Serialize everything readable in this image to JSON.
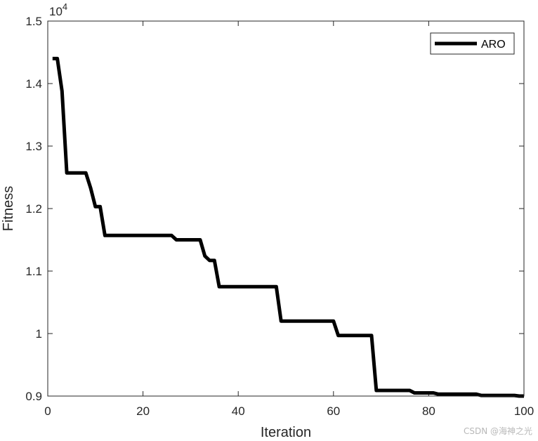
{
  "chart_data": {
    "type": "line",
    "xlabel": "Iteration",
    "ylabel": "Fitness",
    "xlim": [
      0,
      100
    ],
    "ylim": [
      9000,
      15000
    ],
    "x_ticks": [
      "0",
      "20",
      "40",
      "60",
      "80",
      "100"
    ],
    "y_ticks": [
      "0.9",
      "1",
      "1.1",
      "1.2",
      "1.3",
      "1.4",
      "1.5"
    ],
    "y_exponent": "10",
    "y_exponent_power": "4",
    "legend": {
      "position": "top-right"
    },
    "grid": false,
    "series": [
      {
        "name": "ARO",
        "color": "#000000",
        "points": [
          [
            1,
            14400
          ],
          [
            2,
            14400
          ],
          [
            3,
            13880
          ],
          [
            4,
            12570
          ],
          [
            8,
            12570
          ],
          [
            9,
            12330
          ],
          [
            10,
            12030
          ],
          [
            11,
            12030
          ],
          [
            12,
            11570
          ],
          [
            26,
            11570
          ],
          [
            27,
            11500
          ],
          [
            32,
            11500
          ],
          [
            33,
            11240
          ],
          [
            34,
            11170
          ],
          [
            35,
            11170
          ],
          [
            36,
            10750
          ],
          [
            48,
            10750
          ],
          [
            49,
            10200
          ],
          [
            60,
            10200
          ],
          [
            61,
            9970
          ],
          [
            68,
            9970
          ],
          [
            69,
            9090
          ],
          [
            76,
            9090
          ],
          [
            77,
            9050
          ],
          [
            81,
            9050
          ],
          [
            82,
            9030
          ],
          [
            90,
            9030
          ],
          [
            91,
            9010
          ],
          [
            98,
            9010
          ],
          [
            99,
            9000
          ],
          [
            100,
            9000
          ]
        ]
      }
    ]
  },
  "watermark": "CSDN @海神之光"
}
